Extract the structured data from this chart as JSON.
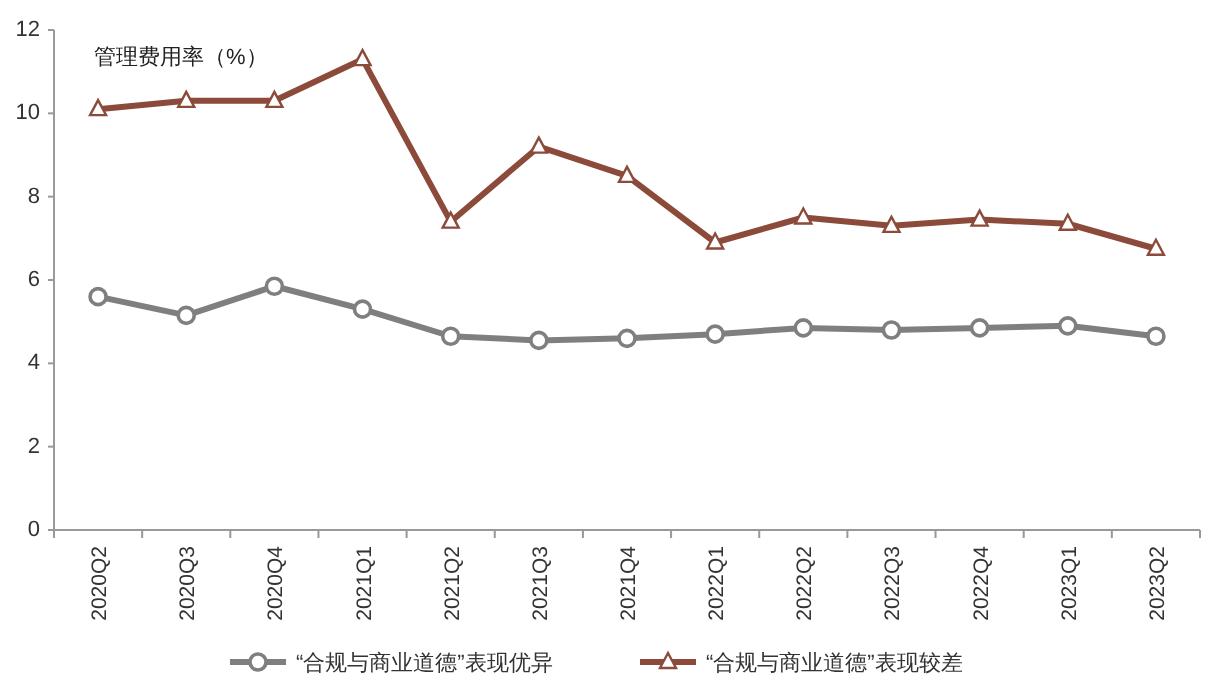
{
  "chart_data": {
    "type": "line",
    "ylabel": "管理费用率（%）",
    "categories": [
      "2020Q2",
      "2020Q3",
      "2020Q4",
      "2021Q1",
      "2021Q2",
      "2021Q3",
      "2021Q4",
      "2022Q1",
      "2022Q2",
      "2022Q3",
      "2022Q4",
      "2023Q1",
      "2023Q2"
    ],
    "series": [
      {
        "name": "“合规与商业道德”表现优异",
        "color": "#7f7f7f",
        "marker": "circle",
        "values": [
          5.6,
          5.15,
          5.85,
          5.3,
          4.65,
          4.55,
          4.6,
          4.7,
          4.85,
          4.8,
          4.85,
          4.9,
          4.65
        ]
      },
      {
        "name": "“合规与商业道德”表现较差",
        "color": "#8b4a3a",
        "marker": "triangle",
        "values": [
          10.1,
          10.3,
          10.3,
          11.3,
          7.4,
          9.2,
          8.5,
          6.9,
          7.5,
          7.3,
          7.45,
          7.35,
          6.75
        ]
      }
    ],
    "ylim": [
      0,
      12
    ],
    "yticks": [
      0,
      2,
      4,
      6,
      8,
      10,
      12
    ],
    "grid": false,
    "legend": "bottom",
    "line_style": "solid"
  }
}
